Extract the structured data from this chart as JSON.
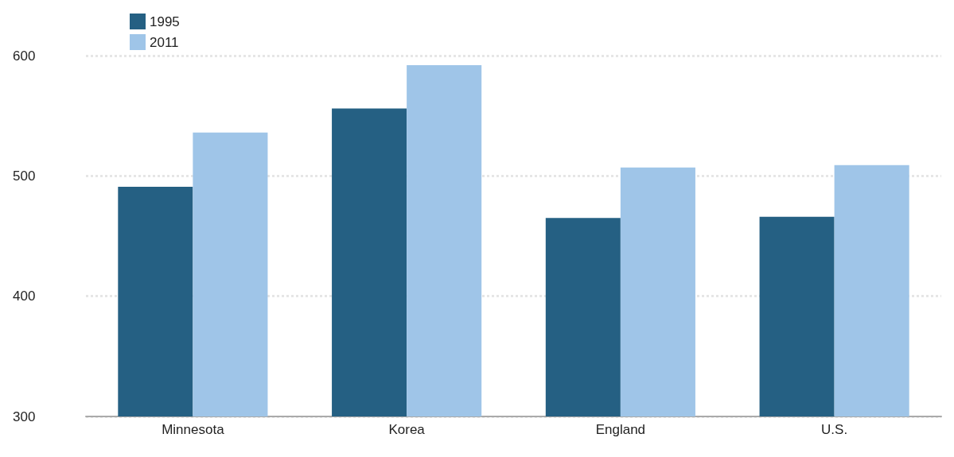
{
  "chart_data": {
    "type": "bar",
    "categories": [
      "Minnesota",
      "Korea",
      "England",
      "U.S."
    ],
    "series": [
      {
        "name": "1995",
        "color": "#256083",
        "values": [
          491,
          556,
          465,
          466
        ]
      },
      {
        "name": "2011",
        "color": "#9fc5e8",
        "values": [
          536,
          592,
          507,
          509
        ]
      }
    ],
    "ylim": [
      300,
      600
    ],
    "yticks": [
      300,
      400,
      500,
      600
    ],
    "grid": "y",
    "legend": "top left"
  }
}
